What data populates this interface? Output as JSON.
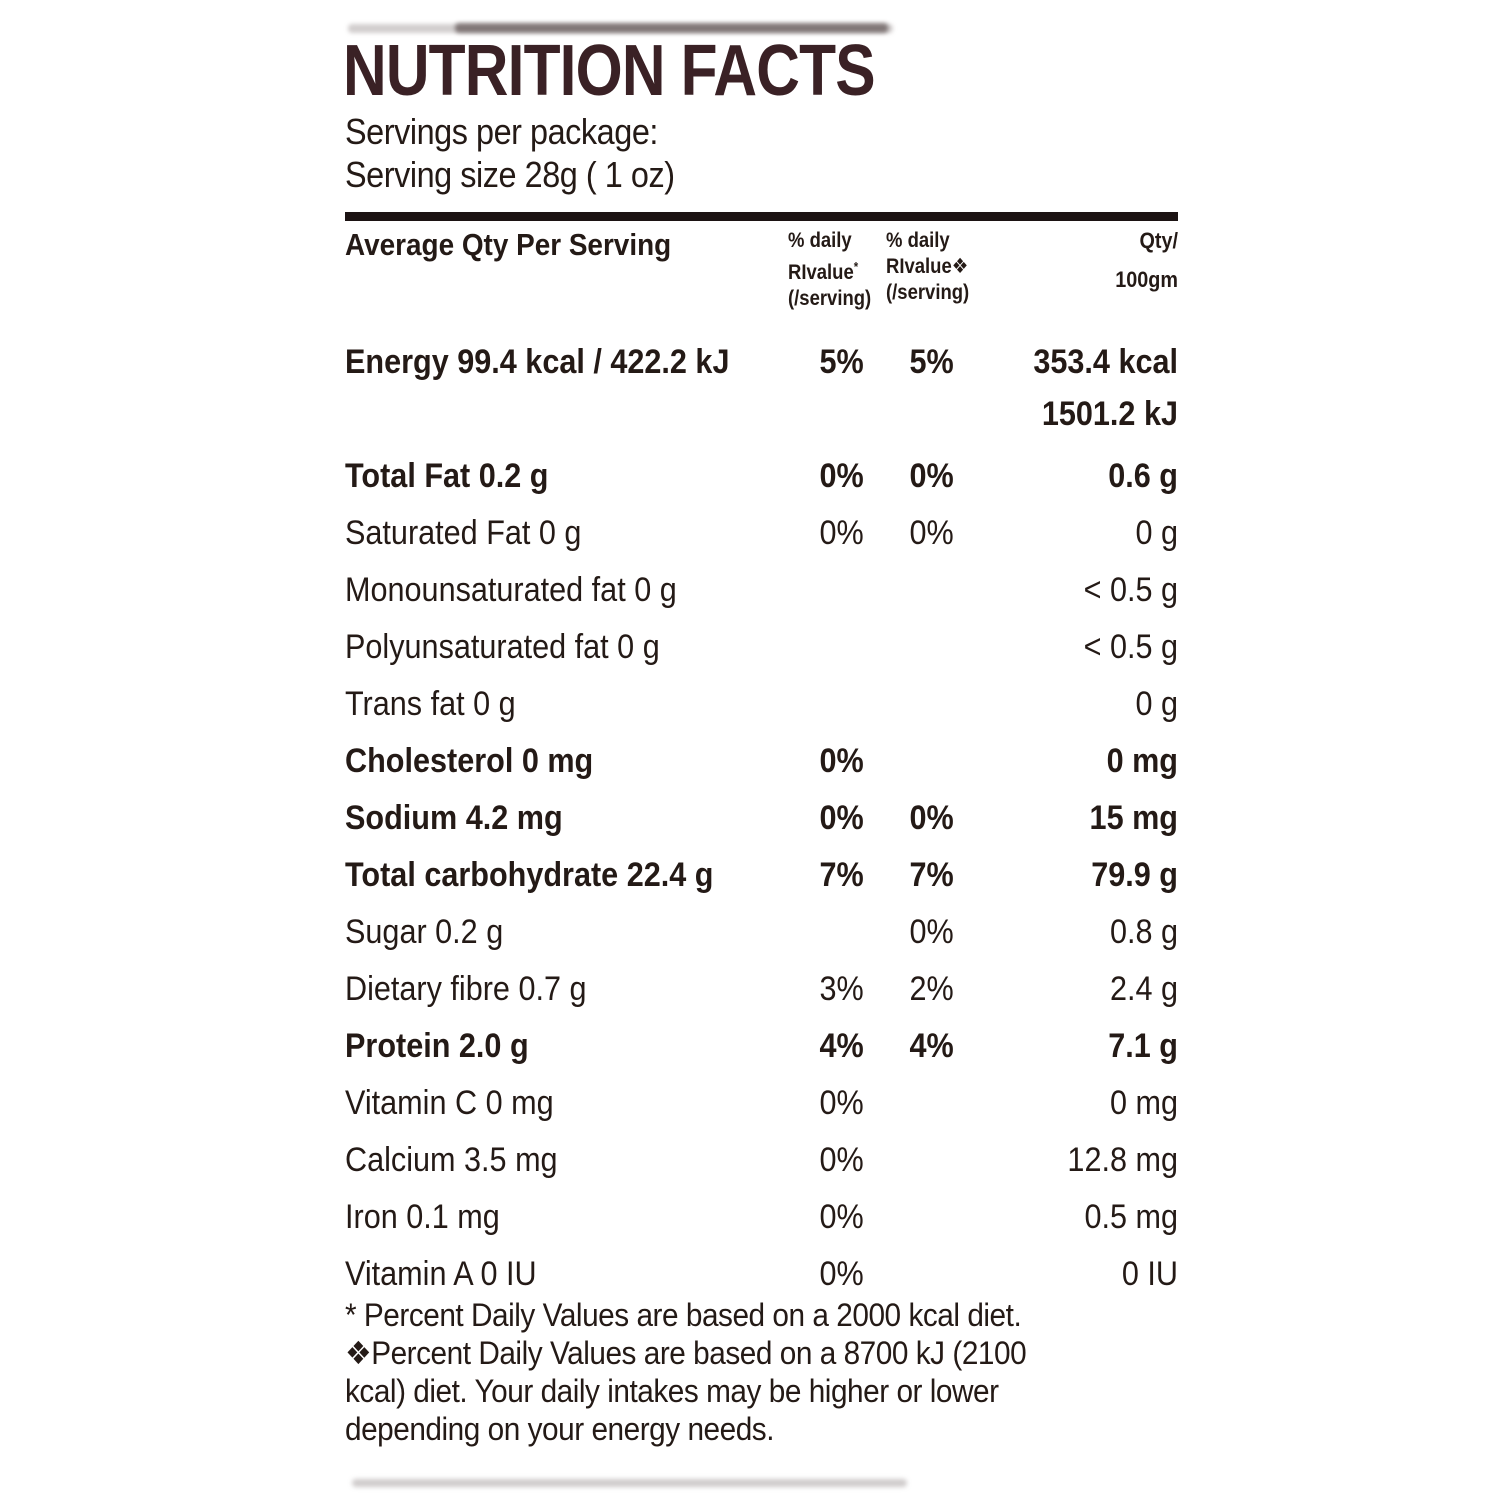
{
  "label": {
    "title": "NUTRITION FACTS",
    "servings_per_package": "Servings per package:",
    "serving_size": "Serving size 28g ( 1 oz)",
    "colors": {
      "title": "#3a2125",
      "text": "#241a16",
      "rule": "#1c1313"
    },
    "table": {
      "columns": {
        "serving": "Average Qty Per Serving",
        "dv1": {
          "lines": [
            "% daily",
            "RIvalue",
            "(/serving)"
          ],
          "suffix": "*"
        },
        "dv2": {
          "lines": [
            "% daily",
            "RIvalue",
            "(/serving)"
          ],
          "suffix": "❖"
        },
        "qty": {
          "lines": [
            "Qty/",
            "100gm"
          ]
        }
      },
      "rows": [
        {
          "name": "Energy 99.4 kcal / 422.2 kJ",
          "dv1": "5%",
          "dv2": "5%",
          "qty": "353.4 kcal",
          "qty2": "1501.2 kJ",
          "bold": true
        },
        {
          "name": "Total Fat 0.2 g",
          "dv1": "0%",
          "dv2": "0%",
          "qty": "0.6 g",
          "bold": true
        },
        {
          "name": "Saturated Fat 0 g",
          "dv1": "0%",
          "dv2": "0%",
          "qty": "0 g",
          "bold": false
        },
        {
          "name": "Monounsaturated fat 0 g",
          "dv1": "",
          "dv2": "",
          "qty": "< 0.5 g",
          "bold": false
        },
        {
          "name": "Polyunsaturated fat 0 g",
          "dv1": "",
          "dv2": "",
          "qty": "< 0.5 g",
          "bold": false
        },
        {
          "name": "Trans fat 0 g",
          "dv1": "",
          "dv2": "",
          "qty": "0 g",
          "bold": false
        },
        {
          "name": "Cholesterol 0 mg",
          "dv1": "0%",
          "dv2": "",
          "qty": "0 mg",
          "bold": true
        },
        {
          "name": "Sodium 4.2 mg",
          "dv1": "0%",
          "dv2": "0%",
          "qty": "15 mg",
          "bold": true
        },
        {
          "name": "Total carbohydrate 22.4 g",
          "dv1": "7%",
          "dv2": "7%",
          "qty": "79.9 g",
          "bold": true
        },
        {
          "name": "Sugar 0.2 g",
          "dv1": "",
          "dv2": "0%",
          "qty": "0.8 g",
          "bold": false
        },
        {
          "name": "Dietary fibre 0.7 g",
          "dv1": "3%",
          "dv2": "2%",
          "qty": "2.4 g",
          "bold": false
        },
        {
          "name": "Protein 2.0 g",
          "dv1": "4%",
          "dv2": "4%",
          "qty": "7.1 g",
          "bold": true
        },
        {
          "name": "Vitamin C 0 mg",
          "dv1": "0%",
          "dv2": "",
          "qty": "0 mg",
          "bold": false
        },
        {
          "name": "Calcium 3.5 mg",
          "dv1": "0%",
          "dv2": "",
          "qty": "12.8 mg",
          "bold": false
        },
        {
          "name": "Iron 0.1 mg",
          "dv1": "0%",
          "dv2": "",
          "qty": "0.5 mg",
          "bold": false
        },
        {
          "name": "Vitamin A 0 IU",
          "dv1": "0%",
          "dv2": "",
          "qty": "0 IU",
          "bold": false
        }
      ]
    },
    "footnote_lines": [
      "* Percent Daily Values are based on a 2000 kcal diet.",
      "❖Percent Daily Values are based on a 8700 kJ (2100",
      "kcal) diet. Your daily intakes may be higher or lower",
      "depending on your energy needs."
    ]
  }
}
